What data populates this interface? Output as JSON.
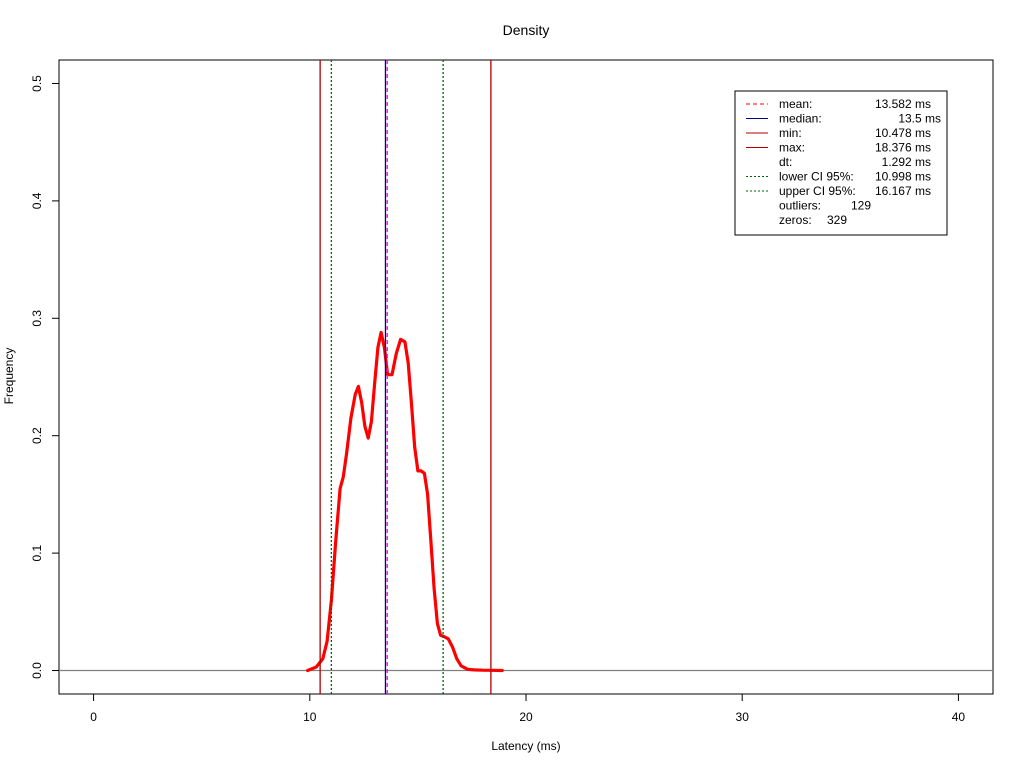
{
  "chart_data": {
    "type": "line",
    "title": "Density",
    "xlabel": "Latency (ms)",
    "ylabel": "Frequency",
    "xlim": [
      -1.6,
      41.6
    ],
    "ylim": [
      -0.02,
      0.52
    ],
    "xticks": [
      0,
      10,
      20,
      30,
      40
    ],
    "yticks": [
      0.0,
      0.1,
      0.2,
      0.3,
      0.4,
      0.5
    ],
    "grid": false,
    "legend_position": "top-right",
    "series": [
      {
        "color": "#ff0000",
        "x": [
          9.9,
          10.3,
          10.6,
          10.8,
          11.0,
          11.2,
          11.4,
          11.55,
          11.7,
          11.9,
          12.1,
          12.25,
          12.4,
          12.55,
          12.7,
          12.85,
          13.0,
          13.15,
          13.3,
          13.45,
          13.6,
          13.8,
          14.0,
          14.2,
          14.4,
          14.55,
          14.7,
          14.85,
          15.0,
          15.15,
          15.3,
          15.45,
          15.6,
          15.75,
          15.9,
          16.05,
          16.2,
          16.4,
          16.6,
          16.8,
          17.0,
          17.3,
          17.6,
          18.0,
          18.4,
          18.9
        ],
        "y": [
          0.0,
          0.003,
          0.01,
          0.025,
          0.06,
          0.11,
          0.155,
          0.165,
          0.185,
          0.215,
          0.235,
          0.242,
          0.228,
          0.208,
          0.198,
          0.212,
          0.245,
          0.275,
          0.288,
          0.275,
          0.252,
          0.252,
          0.27,
          0.282,
          0.28,
          0.262,
          0.228,
          0.19,
          0.17,
          0.17,
          0.168,
          0.15,
          0.11,
          0.07,
          0.04,
          0.03,
          0.029,
          0.027,
          0.02,
          0.01,
          0.004,
          0.001,
          0.0005,
          0.0003,
          0.0002,
          0.0
        ]
      }
    ],
    "vlines": [
      {
        "name": "min",
        "x": 10.478,
        "color": "#b00000",
        "dash": "solid"
      },
      {
        "name": "max",
        "x": 18.376,
        "color": "#b00000",
        "dash": "solid"
      },
      {
        "name": "lower_ci",
        "x": 10.998,
        "color": "#006400",
        "dash": "dotted"
      },
      {
        "name": "upper_ci",
        "x": 16.167,
        "color": "#006400",
        "dash": "dotted"
      },
      {
        "name": "median",
        "x": 13.5,
        "color": "#00008b",
        "dash": "solid"
      },
      {
        "name": "mean",
        "x": 13.582,
        "color": "#ff00ff",
        "dash": "dashed"
      }
    ],
    "hline": {
      "y": 0,
      "color": "#808080"
    },
    "legend": [
      {
        "label": "mean:",
        "value": "13.582 ms",
        "line_color": "#ff0000",
        "dash": "dashed"
      },
      {
        "label": "median:",
        "value": "13.5 ms",
        "line_color": "#00008b",
        "dash": "solid"
      },
      {
        "label": "min:",
        "value": "10.478 ms",
        "line_color": "#b00000",
        "dash": "solid"
      },
      {
        "label": "max:",
        "value": "18.376 ms",
        "line_color": "#b00000",
        "dash": "solid"
      },
      {
        "label": "dt:",
        "value": "1.292 ms",
        "line_color": "",
        "dash": "none"
      },
      {
        "label": "lower CI 95%:",
        "value": "10.998 ms",
        "line_color": "#006400",
        "dash": "dotted"
      },
      {
        "label": "upper CI 95%:",
        "value": "16.167 ms",
        "line_color": "#006400",
        "dash": "dotted"
      },
      {
        "label": "outliers:",
        "value": "129",
        "line_color": "",
        "dash": "none"
      },
      {
        "label": "zeros:",
        "value": "329",
        "line_color": "",
        "dash": "none"
      }
    ]
  }
}
